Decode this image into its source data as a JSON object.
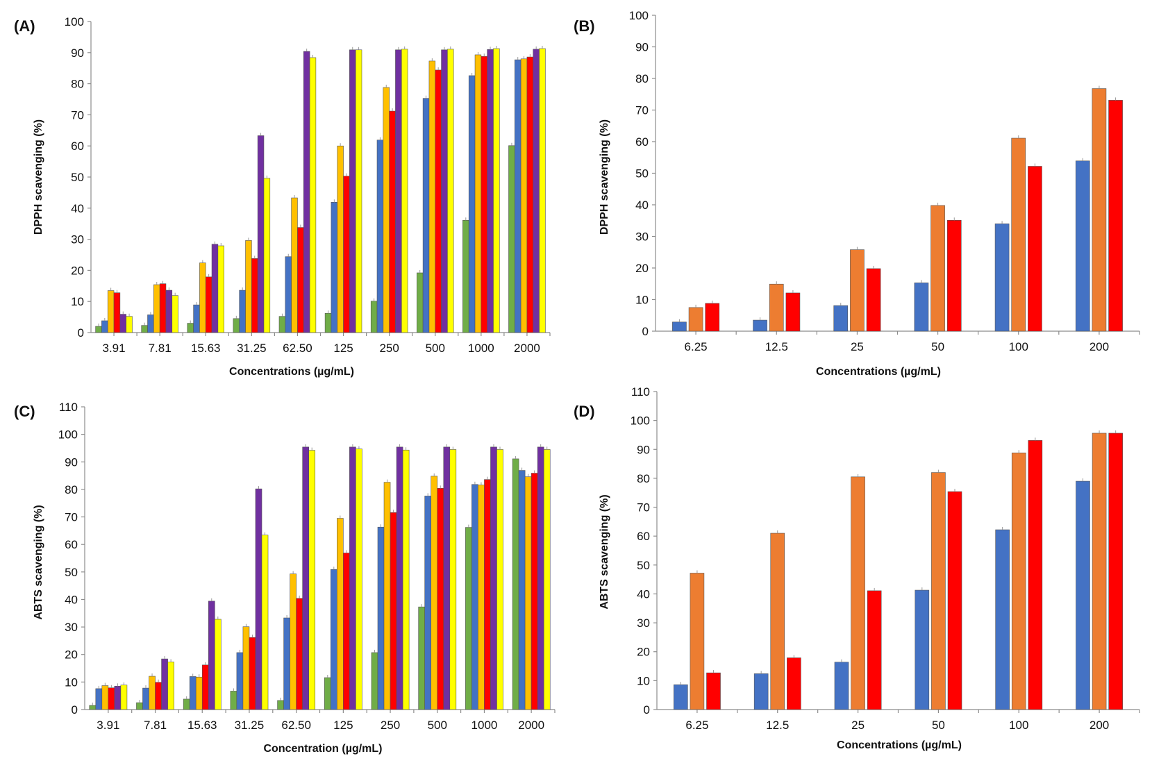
{
  "figure": {
    "panels_order": [
      "A",
      "B",
      "C",
      "D"
    ]
  },
  "chart_data": [
    {
      "id": "A",
      "panel_label": "(A)",
      "type": "bar",
      "title": "",
      "xlabel": "Concentrations (µg/mL)",
      "ylabel": "DPPH scavenging (%)",
      "ylim": [
        0,
        100
      ],
      "yticks": [
        0,
        10,
        20,
        30,
        40,
        50,
        60,
        70,
        80,
        90,
        100
      ],
      "grid": false,
      "legend": "none",
      "categories": [
        "3.91",
        "7.81",
        "15.63",
        "31.25",
        "62.50",
        "125",
        "250",
        "500",
        "1000",
        "2000"
      ],
      "series": [
        {
          "name": "series-green",
          "color": "#70ad47",
          "values": [
            2.0,
            2.3,
            3.0,
            4.5,
            5.2,
            6.2,
            10.1,
            19.2,
            36.1,
            60.1
          ]
        },
        {
          "name": "series-blue",
          "color": "#4472c4",
          "values": [
            3.8,
            5.7,
            8.9,
            13.6,
            24.4,
            41.9,
            61.9,
            75.3,
            82.6,
            87.7
          ]
        },
        {
          "name": "series-gold",
          "color": "#ffc000",
          "values": [
            13.5,
            15.4,
            22.4,
            29.6,
            43.3,
            60.0,
            78.8,
            87.3,
            89.3,
            88.0
          ]
        },
        {
          "name": "series-red",
          "color": "#ff0000",
          "values": [
            12.8,
            15.7,
            17.9,
            23.8,
            33.8,
            50.3,
            71.2,
            84.4,
            88.8,
            88.6
          ]
        },
        {
          "name": "series-purple",
          "color": "#7030a0",
          "values": [
            5.9,
            13.6,
            28.4,
            63.3,
            90.4,
            90.9,
            90.9,
            90.9,
            91.0,
            91.1
          ]
        },
        {
          "name": "series-yellow",
          "color": "#ffff00",
          "values": [
            5.2,
            11.9,
            27.9,
            49.6,
            88.4,
            90.9,
            91.1,
            91.1,
            91.3,
            91.3
          ]
        }
      ]
    },
    {
      "id": "B",
      "panel_label": "(B)",
      "type": "bar",
      "title": "",
      "xlabel": "Concentrations (µg/mL)",
      "ylabel": "DPPH scavenging (%)",
      "ylim": [
        0,
        100
      ],
      "yticks": [
        0,
        10,
        20,
        30,
        40,
        50,
        60,
        70,
        80,
        90,
        100
      ],
      "grid": false,
      "legend": "none",
      "categories": [
        "6.25",
        "12.5",
        "25",
        "50",
        "100",
        "200"
      ],
      "series": [
        {
          "name": "series-blue",
          "color": "#4472c4",
          "values": [
            2.9,
            3.5,
            8.1,
            15.3,
            34.0,
            53.9
          ]
        },
        {
          "name": "series-orange",
          "color": "#ed7d31",
          "values": [
            7.5,
            14.9,
            25.8,
            39.8,
            61.1,
            76.8
          ]
        },
        {
          "name": "series-red",
          "color": "#ff0000",
          "values": [
            8.8,
            12.1,
            19.8,
            35.1,
            52.2,
            73.1
          ]
        }
      ]
    },
    {
      "id": "C",
      "panel_label": "(C)",
      "type": "bar",
      "title": "",
      "xlabel": "Concentration (µg/mL)",
      "ylabel": "ABTS scavenging (%)",
      "ylim": [
        0,
        110
      ],
      "yticks": [
        0,
        10,
        20,
        30,
        40,
        50,
        60,
        70,
        80,
        90,
        100,
        110
      ],
      "grid": false,
      "legend": "none",
      "categories": [
        "3.91",
        "7.81",
        "15.63",
        "31.25",
        "62.50",
        "125",
        "250",
        "500",
        "1000",
        "2000"
      ],
      "series": [
        {
          "name": "series-green",
          "color": "#70ad47",
          "values": [
            1.5,
            2.5,
            3.8,
            6.7,
            3.3,
            11.6,
            20.7,
            37.3,
            66.2,
            91.1
          ]
        },
        {
          "name": "series-blue",
          "color": "#4472c4",
          "values": [
            7.6,
            7.8,
            12.0,
            20.7,
            33.3,
            50.9,
            66.3,
            77.6,
            81.8,
            86.9
          ]
        },
        {
          "name": "series-gold",
          "color": "#ffc000",
          "values": [
            8.7,
            12.1,
            11.8,
            30.1,
            49.3,
            69.5,
            82.6,
            84.8,
            81.6,
            84.6
          ]
        },
        {
          "name": "series-red",
          "color": "#ff0000",
          "values": [
            7.9,
            9.9,
            16.2,
            26.2,
            40.4,
            56.9,
            71.6,
            80.4,
            83.6,
            85.9
          ]
        },
        {
          "name": "series-purple",
          "color": "#7030a0",
          "values": [
            8.5,
            18.4,
            39.4,
            80.2,
            95.4,
            95.4,
            95.4,
            95.4,
            95.4,
            95.4
          ]
        },
        {
          "name": "series-yellow",
          "color": "#ffff00",
          "values": [
            8.9,
            17.3,
            32.8,
            63.4,
            94.2,
            94.7,
            94.3,
            94.5,
            94.5,
            94.5
          ]
        }
      ]
    },
    {
      "id": "D",
      "panel_label": "(D)",
      "type": "bar",
      "title": "",
      "xlabel": "Concentrations (µg/mL)",
      "ylabel": "ABTS scavenging (%)",
      "ylim": [
        0,
        110
      ],
      "yticks": [
        0,
        10,
        20,
        30,
        40,
        50,
        60,
        70,
        80,
        90,
        100,
        110
      ],
      "grid": false,
      "legend": "none",
      "categories": [
        "6.25",
        "12.5",
        "25",
        "50",
        "100",
        "200"
      ],
      "series": [
        {
          "name": "series-blue",
          "color": "#4472c4",
          "values": [
            8.6,
            12.4,
            16.4,
            41.3,
            62.2,
            79.0
          ]
        },
        {
          "name": "series-orange",
          "color": "#ed7d31",
          "values": [
            47.2,
            61.0,
            80.5,
            82.0,
            88.8,
            95.6
          ]
        },
        {
          "name": "series-red",
          "color": "#ff0000",
          "values": [
            12.7,
            17.9,
            41.1,
            75.4,
            93.1,
            95.6
          ]
        }
      ]
    }
  ]
}
